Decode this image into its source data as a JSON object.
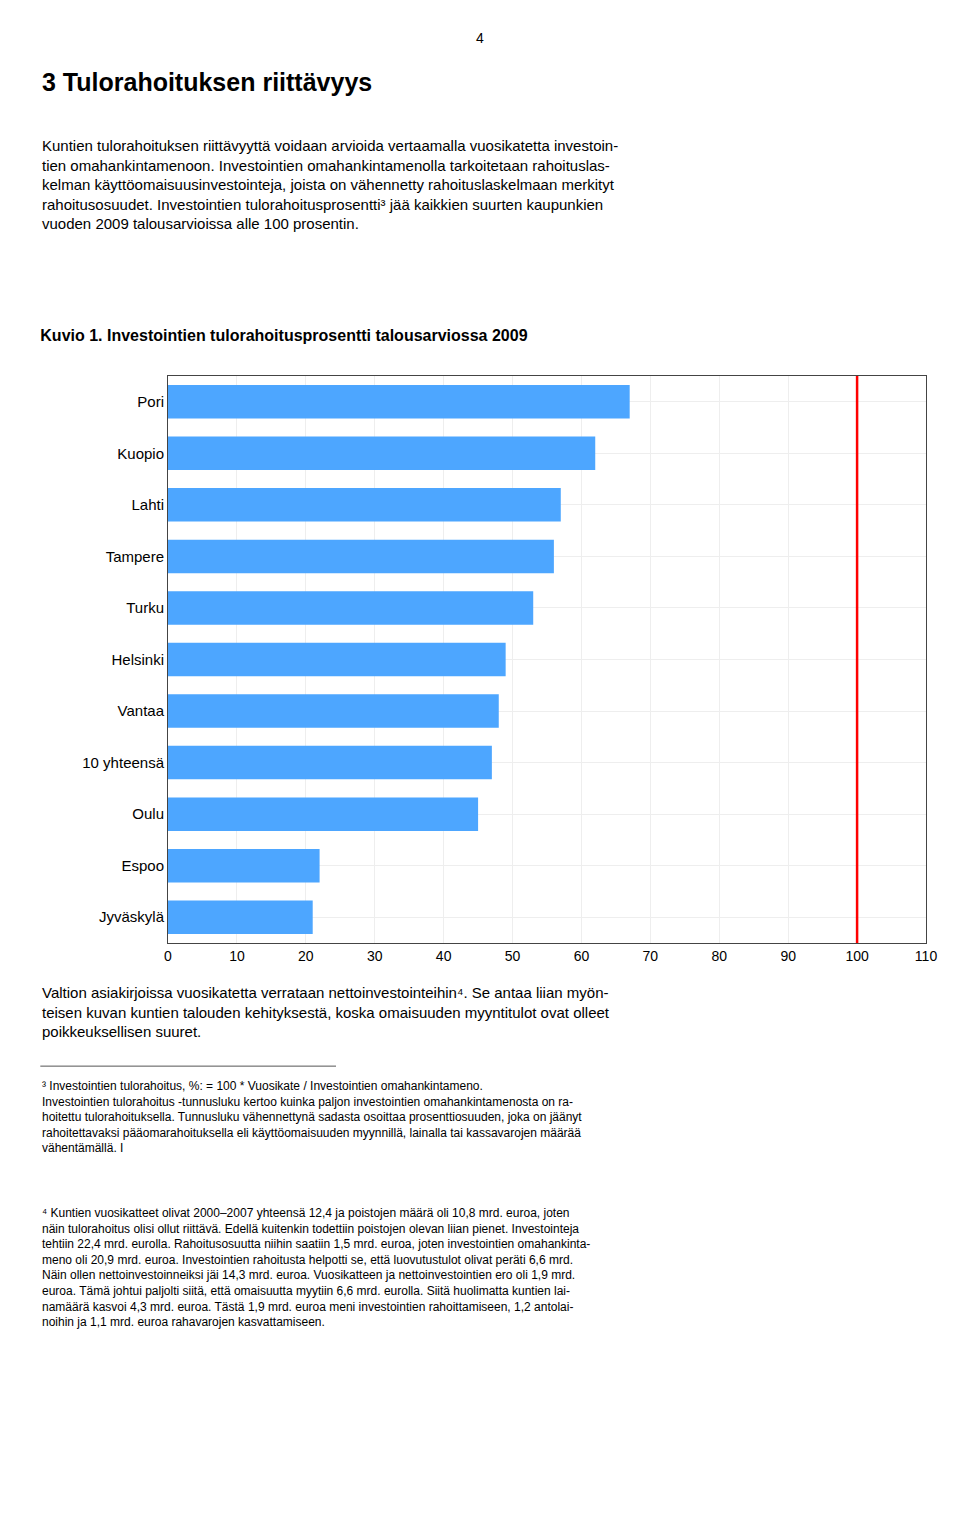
{
  "chart_data": {
    "type": "bar",
    "orientation": "horizontal",
    "title": "Kuvio 1. Investointien tulorahoitusprosentti talousarviossa 2009",
    "categories": [
      "Pori",
      "Kuopio",
      "Lahti",
      "Tampere",
      "Turku",
      "Helsinki",
      "Vantaa",
      "10 yhteensä",
      "Oulu",
      "Espoo",
      "Jyväskylä"
    ],
    "values": [
      67,
      62,
      57,
      56,
      53,
      49,
      48,
      47,
      45,
      22,
      21
    ],
    "color": "#4DA6FF",
    "xlim": [
      0,
      110
    ],
    "xticks": [
      0,
      10,
      20,
      30,
      40,
      50,
      60,
      70,
      80,
      90,
      100,
      110
    ],
    "grid": true,
    "reference_line": {
      "value": 100,
      "color": "#FF0000"
    },
    "annotations": [
      "4",
      "3 Tulorahoituksen riittävyys",
      "Kuntien tulorahoituksen riittävyyttä voidaan arvioida vertaamalla vuosikatetta investoin-\ntien omahankintamenoon. Investointien omahankintamenolla tarkoitetaan rahoituslas-\nkelman käyttöomaisuusinvestointeja, joista on vähennetty rahoituslaskelmaan merkityt\nrahoitusosuudet. Investointien tulorahoitusprosentti³ jää kaikkien suurten kaupunkien\nvuoden 2009 talousarvioissa alle 100 prosentin.",
      "Valtion asiakirjoissa vuosikatetta verrataan nettoinvestointeihin⁴. Se antaa liian myön-\nteisen kuvan kuntien talouden kehityksestä, koska omaisuuden myyntitulot ovat olleet\npoikkeuksellisen suuret.",
      "³ Investointien tulorahoitus, %: = 100 * Vuosikate / Investointien omahankintameno.\nInvestointien tulorahoitus -tunnusluku kertoo kuinka paljon investointien omahankintamenosta on ra-\nhoitettu tulorahoituksella. Tunnusluku vähennettynä sadasta osoittaa prosenttiosuuden, joka on jäänyt\nrahoitettavaksi pääomarahoituksella eli käyttöomaisuuden myynnillä, lainalla tai kassavarojen määrää\nvähentämällä. I",
      "⁴ Kuntien vuosikatteet olivat 2000–2007 yhteensä 12,4 ja poistojen määrä oli 10,8 mrd. euroa, joten\nnäin tulorahoitus olisi ollut riittävä. Edellä kuitenkin todettiin poistojen olevan liian pienet. Investointeja\ntehtiin 22,4 mrd. eurolla. Rahoitusosuutta niihin saatiin 1,5 mrd. euroa, joten investointien omahankinta-\nmeno oli 20,9 mrd. euroa. Investointien rahoitusta helpotti se, että luovutustulot olivat peräti 6,6 mrd.\nNäin ollen nettoinvestoinneiksi jäi 14,3 mrd. euroa. Vuosikatteen ja nettoinvestointien ero oli 1,9 mrd.\neuroa. Tämä johtui paljolti siitä, että omaisuutta myytiin 6,6 mrd. eurolla. Siitä huolimatta kuntien lai-\nnamäärä kasvoi 4,3 mrd. euroa. Tästä 1,9 mrd. euroa meni investointien rahoittamiseen, 1,2 antolai-\nnoihin ja 1,1 mrd. euroa rahavarojen kasvattamiseen."
    ]
  }
}
